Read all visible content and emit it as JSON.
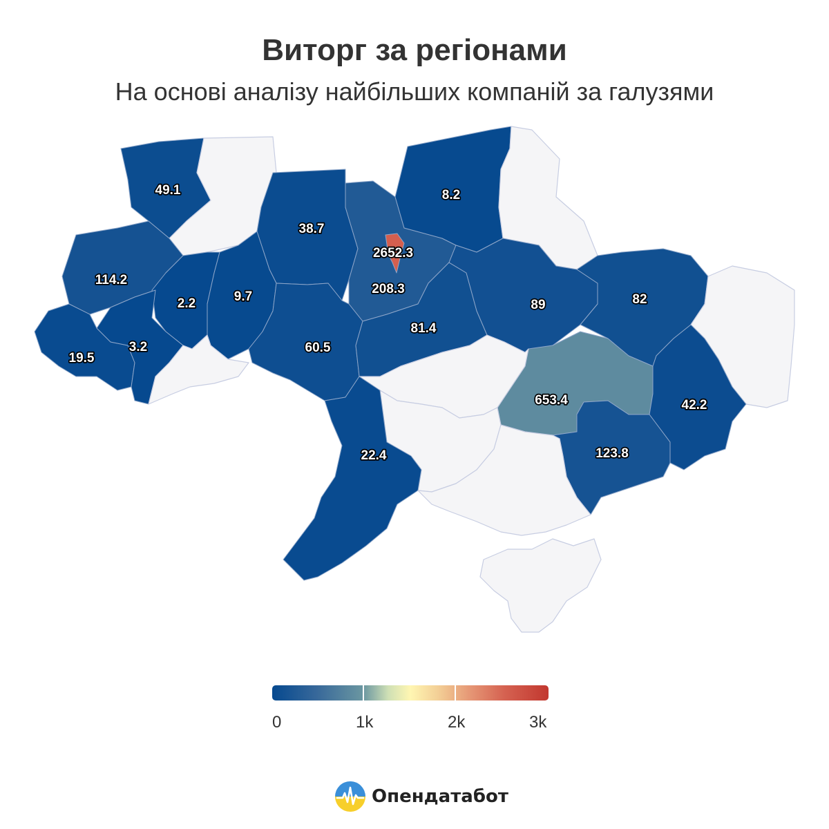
{
  "header": {
    "title": "Виторг за регіонами",
    "subtitle": "На основі аналізу найбільших компаній за галузями"
  },
  "chart_data": {
    "type": "choropleth",
    "title": "Виторг за регіонами",
    "subtitle": "На основі аналізу найбільших компаній за галузями",
    "regions": [
      {
        "name": "Волинська",
        "value": 49.1
      },
      {
        "name": "Рівненська",
        "value": null
      },
      {
        "name": "Житомирська",
        "value": 38.7
      },
      {
        "name": "Київська",
        "value": 208.3
      },
      {
        "name": "м. Київ",
        "value": 2652.3
      },
      {
        "name": "Чернігівська",
        "value": 8.2
      },
      {
        "name": "Сумська",
        "value": null
      },
      {
        "name": "Львівська",
        "value": 114.2
      },
      {
        "name": "Тернопільська",
        "value": 2.2
      },
      {
        "name": "Хмельницька",
        "value": 9.7
      },
      {
        "name": "Закарпатська",
        "value": 19.5
      },
      {
        "name": "Івано-Франківська",
        "value": 3.2
      },
      {
        "name": "Чернівецька",
        "value": null
      },
      {
        "name": "Вінницька",
        "value": 60.5
      },
      {
        "name": "Черкаська",
        "value": 81.4
      },
      {
        "name": "Полтавська",
        "value": 89
      },
      {
        "name": "Харківська",
        "value": 82
      },
      {
        "name": "Луганська",
        "value": null
      },
      {
        "name": "Дніпропетровська",
        "value": 653.4
      },
      {
        "name": "Донецька",
        "value": 42.2
      },
      {
        "name": "Запорізька",
        "value": 123.8
      },
      {
        "name": "Кіровоградська",
        "value": null
      },
      {
        "name": "Миколаївська",
        "value": null
      },
      {
        "name": "Одеська",
        "value": 22.4
      },
      {
        "name": "Херсонська",
        "value": null
      },
      {
        "name": "АР Крим",
        "value": null
      }
    ],
    "color_scale": {
      "min": 0,
      "max": 3000,
      "ticks": [
        "0",
        "1k",
        "2k",
        "3k"
      ],
      "colors": [
        "#06498f",
        "#37689a",
        "#6b97a1",
        "#cfe0b5",
        "#fff6b2",
        "#f3cf96",
        "#e59574",
        "#d56251",
        "#c2372f"
      ],
      "no_data_color": "#f5f5f7"
    }
  },
  "legend": {
    "ticks": [
      "0",
      "1k",
      "2k",
      "3k"
    ]
  },
  "brand": {
    "name": "Опендатабот"
  }
}
